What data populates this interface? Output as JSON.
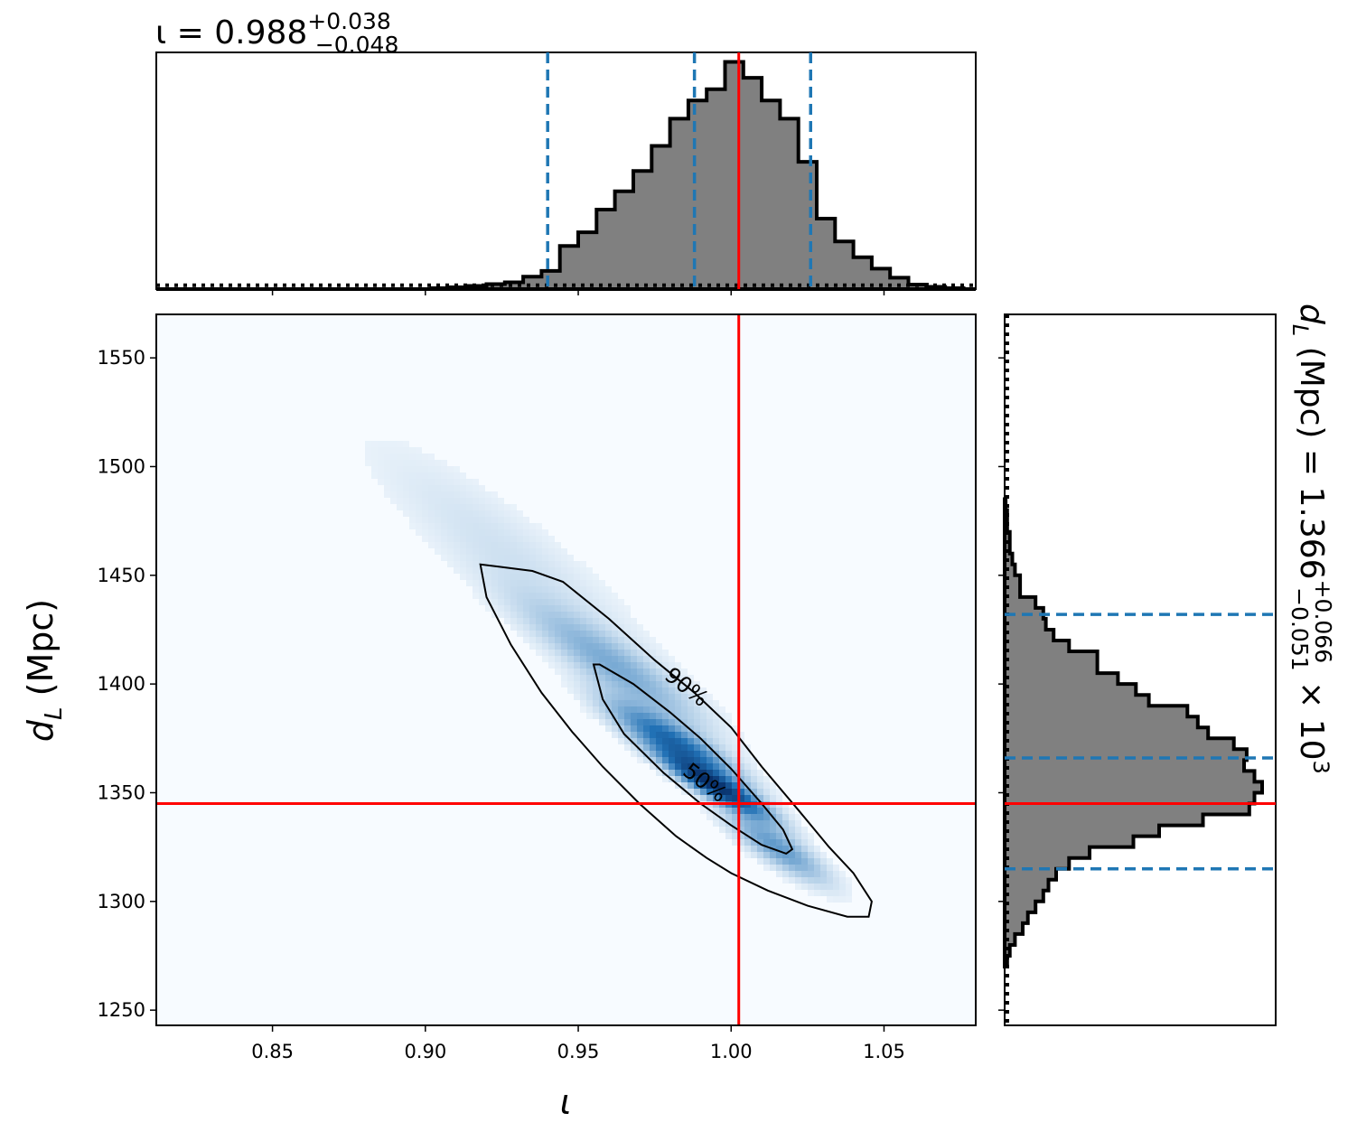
{
  "chart_data": {
    "type": "corner",
    "colors": {
      "truth": "#ff0000",
      "quantile": "#1f77b4",
      "hist_fill": "#808080",
      "hist_edge": "#000000",
      "density_low": "#f7fbff",
      "density_high": "#08306b"
    },
    "title": {
      "prefix": "ι = 0.988",
      "sup": "+0.038",
      "sub": "−0.048"
    },
    "right_title": {
      "prefix": "d",
      "prefix_sub": "L",
      "middle": " (Mpc) = 1.366",
      "sup": "+0.066",
      "sub": "−0.051",
      "suffix": " × 10",
      "suffix_sup": "3"
    },
    "xlabel": "ι",
    "ylabel": "d",
    "ylabel_sub": "L",
    "ylabel_unit": " (Mpc)",
    "xlim": [
      0.812,
      1.08
    ],
    "ylim": [
      1243,
      1570
    ],
    "xticks": [
      0.85,
      0.9,
      0.95,
      1.0,
      1.05
    ],
    "xtick_labels": [
      "0.85",
      "0.90",
      "0.95",
      "1.00",
      "1.05"
    ],
    "yticks": [
      1250,
      1300,
      1350,
      1400,
      1450,
      1500,
      1550
    ],
    "ytick_labels": [
      "1250",
      "1300",
      "1350",
      "1400",
      "1450",
      "1500",
      "1550"
    ],
    "truth": {
      "iota": 1.0025,
      "dL": 1345
    },
    "iota_quantiles": [
      0.94,
      0.988,
      1.026
    ],
    "dL_quantiles": [
      1315,
      1366,
      1432
    ],
    "contour_labels": [
      "90%",
      "50%"
    ],
    "contour_90": [
      [
        0.918,
        1455
      ],
      [
        0.924,
        1454
      ],
      [
        0.935,
        1452
      ],
      [
        0.945,
        1447
      ],
      [
        0.96,
        1430
      ],
      [
        0.975,
        1411
      ],
      [
        0.988,
        1396
      ],
      [
        1.0,
        1380
      ],
      [
        1.01,
        1362
      ],
      [
        1.022,
        1342
      ],
      [
        1.032,
        1325
      ],
      [
        1.04,
        1313
      ],
      [
        1.046,
        1300
      ],
      [
        1.045,
        1293
      ],
      [
        1.038,
        1293
      ],
      [
        1.025,
        1298
      ],
      [
        1.012,
        1305
      ],
      [
        1.0,
        1313
      ],
      [
        0.992,
        1320
      ],
      [
        0.982,
        1330
      ],
      [
        0.97,
        1345
      ],
      [
        0.958,
        1362
      ],
      [
        0.948,
        1378
      ],
      [
        0.938,
        1396
      ],
      [
        0.928,
        1418
      ],
      [
        0.92,
        1440
      ]
    ],
    "contour_50": [
      [
        0.955,
        1409
      ],
      [
        0.957,
        1409
      ],
      [
        0.968,
        1400
      ],
      [
        0.98,
        1387
      ],
      [
        0.99,
        1375
      ],
      [
        1.0,
        1361
      ],
      [
        1.01,
        1345
      ],
      [
        1.017,
        1333
      ],
      [
        1.02,
        1324
      ],
      [
        1.018,
        1322
      ],
      [
        1.01,
        1326
      ],
      [
        1.0,
        1335
      ],
      [
        0.99,
        1345
      ],
      [
        0.978,
        1359
      ],
      [
        0.965,
        1377
      ],
      [
        0.958,
        1393
      ]
    ],
    "density_blobs": [
      {
        "iota": 0.995,
        "dL": 1353,
        "amp": 1.0,
        "sx": 0.0105,
        "sy": 9,
        "rho": -0.9
      },
      {
        "iota": 0.982,
        "dL": 1372,
        "amp": 0.65,
        "sx": 0.013,
        "sy": 12,
        "rho": -0.88
      },
      {
        "iota": 0.962,
        "dL": 1408,
        "amp": 0.25,
        "sx": 0.018,
        "sy": 18,
        "rho": -0.9
      },
      {
        "iota": 1.015,
        "dL": 1325,
        "amp": 0.35,
        "sx": 0.01,
        "sy": 10,
        "rho": -0.85
      },
      {
        "iota": 0.93,
        "dL": 1455,
        "amp": 0.06,
        "sx": 0.03,
        "sy": 35,
        "rho": -0.9
      }
    ],
    "iota_hist": {
      "bin_edges": [
        0.812,
        0.818,
        0.824,
        0.83,
        0.836,
        0.842,
        0.848,
        0.854,
        0.86,
        0.866,
        0.872,
        0.878,
        0.884,
        0.89,
        0.896,
        0.902,
        0.908,
        0.914,
        0.92,
        0.926,
        0.932,
        0.938,
        0.944,
        0.95,
        0.956,
        0.962,
        0.968,
        0.974,
        0.98,
        0.986,
        0.992,
        0.998,
        1.004,
        1.01,
        1.016,
        1.022,
        1.028,
        1.034,
        1.04,
        1.046,
        1.052,
        1.058,
        1.064,
        1.07,
        1.076,
        1.08
      ],
      "counts": [
        0,
        0,
        0,
        0,
        0,
        0,
        0,
        0,
        0,
        0,
        0,
        0,
        0,
        0,
        0,
        0.004,
        0.008,
        0.014,
        0.022,
        0.03,
        0.055,
        0.08,
        0.19,
        0.25,
        0.35,
        0.43,
        0.52,
        0.63,
        0.75,
        0.83,
        0.88,
        1.0,
        0.93,
        0.83,
        0.75,
        0.56,
        0.31,
        0.21,
        0.14,
        0.09,
        0.05,
        0.02,
        0.01,
        0.004,
        0
      ]
    },
    "iota_prior_level": 0.018,
    "dL_hist": {
      "bin_edges": [
        1270,
        1275,
        1280,
        1285,
        1290,
        1295,
        1300,
        1305,
        1310,
        1315,
        1320,
        1325,
        1330,
        1335,
        1340,
        1345,
        1350,
        1355,
        1360,
        1365,
        1370,
        1375,
        1380,
        1385,
        1390,
        1395,
        1400,
        1405,
        1410,
        1415,
        1420,
        1425,
        1430,
        1435,
        1440,
        1445,
        1450,
        1455,
        1460,
        1465,
        1470,
        1475,
        1480,
        1485
      ],
      "counts": [
        0.01,
        0.02,
        0.04,
        0.07,
        0.09,
        0.12,
        0.15,
        0.17,
        0.2,
        0.25,
        0.33,
        0.5,
        0.6,
        0.77,
        0.95,
        0.97,
        1.0,
        0.97,
        0.93,
        0.94,
        0.89,
        0.79,
        0.75,
        0.71,
        0.56,
        0.51,
        0.44,
        0.36,
        0.36,
        0.25,
        0.19,
        0.16,
        0.15,
        0.12,
        0.06,
        0.06,
        0.04,
        0.03,
        0.02,
        0.02,
        0.01,
        0.01,
        0.004
      ]
    }
  }
}
